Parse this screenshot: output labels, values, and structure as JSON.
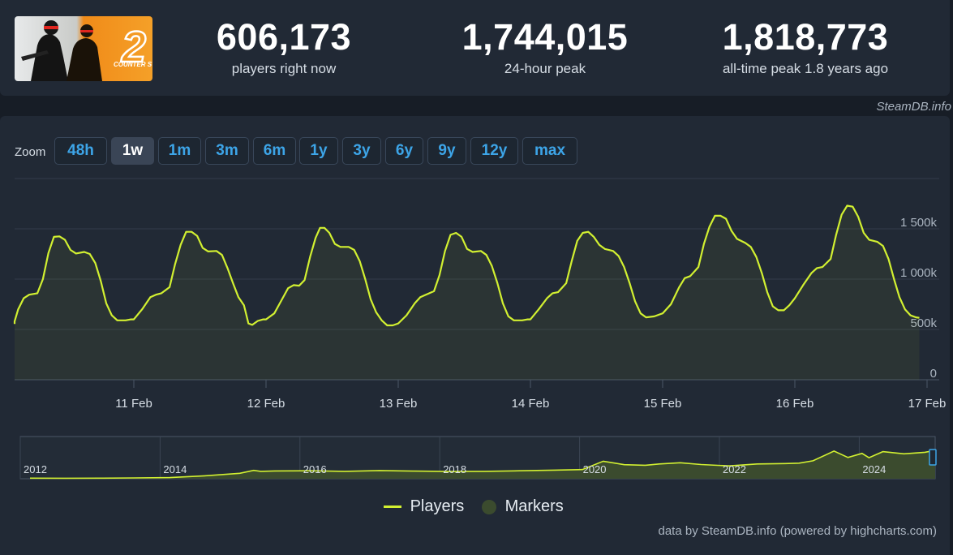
{
  "header": {
    "logo_label": "COUNTER STRIKE",
    "logo_number": "2",
    "stats": [
      {
        "value": "606,173",
        "label": "players right now"
      },
      {
        "value": "1,744,015",
        "label": "24-hour peak"
      },
      {
        "value": "1,818,773",
        "label": "all-time peak 1.8 years ago"
      }
    ],
    "credit": "SteamDB.info"
  },
  "zoom": {
    "label": "Zoom",
    "buttons": [
      "48h",
      "1w",
      "1m",
      "3m",
      "6m",
      "1y",
      "3y",
      "6y",
      "9y",
      "12y",
      "max"
    ],
    "active": "1w"
  },
  "colors": {
    "series": "#d2f031",
    "navigator_fill": "#3b4b2e",
    "background": "#212935"
  },
  "chart_data": {
    "type": "line",
    "series": [
      {
        "name": "Players"
      }
    ],
    "x_ticks": [
      "11 Feb",
      "12 Feb",
      "13 Feb",
      "14 Feb",
      "15 Feb",
      "16 Feb",
      "17 Feb"
    ],
    "y_ticks": [
      "0",
      "500k",
      "1 000k",
      "1 500k"
    ],
    "ylim": [
      0,
      2000000
    ],
    "days": [
      {
        "x": "10 Feb",
        "points": [
          [
            0.0,
            555000
          ],
          [
            1.5,
            580000
          ],
          [
            3.0,
            700000
          ],
          [
            4.0,
            810000
          ],
          [
            5.0,
            845000
          ],
          [
            6.5,
            860000
          ],
          [
            7.5,
            1000000
          ],
          [
            8.5,
            1260000
          ],
          [
            9.5,
            1420000
          ],
          [
            10.5,
            1425000
          ],
          [
            11.5,
            1390000
          ],
          [
            12.5,
            1290000
          ],
          [
            13.5,
            1255000
          ],
          [
            15.0,
            1270000
          ],
          [
            16.0,
            1250000
          ],
          [
            17.0,
            1160000
          ],
          [
            18.0,
            980000
          ],
          [
            19.0,
            760000
          ],
          [
            20.0,
            640000
          ],
          [
            21.0,
            590000
          ],
          [
            22.5,
            590000
          ],
          [
            23.5,
            600000
          ]
        ]
      },
      {
        "x": "11 Feb",
        "points": [
          [
            0.0,
            600000
          ],
          [
            1.5,
            700000
          ],
          [
            3.0,
            820000
          ],
          [
            4.0,
            845000
          ],
          [
            5.0,
            860000
          ],
          [
            6.5,
            920000
          ],
          [
            7.5,
            1150000
          ],
          [
            8.5,
            1340000
          ],
          [
            9.5,
            1470000
          ],
          [
            10.5,
            1470000
          ],
          [
            11.5,
            1430000
          ],
          [
            12.5,
            1310000
          ],
          [
            13.5,
            1275000
          ],
          [
            15.0,
            1280000
          ],
          [
            16.0,
            1240000
          ],
          [
            17.0,
            1110000
          ],
          [
            18.0,
            960000
          ],
          [
            19.0,
            820000
          ],
          [
            20.0,
            740000
          ],
          [
            20.8,
            560000
          ],
          [
            21.5,
            545000
          ],
          [
            22.5,
            585000
          ],
          [
            23.5,
            600000
          ]
        ]
      },
      {
        "x": "12 Feb",
        "points": [
          [
            0.0,
            600000
          ],
          [
            1.5,
            660000
          ],
          [
            3.0,
            810000
          ],
          [
            4.0,
            910000
          ],
          [
            5.0,
            940000
          ],
          [
            6.0,
            935000
          ],
          [
            7.0,
            990000
          ],
          [
            8.0,
            1220000
          ],
          [
            9.0,
            1410000
          ],
          [
            9.8,
            1510000
          ],
          [
            10.6,
            1510000
          ],
          [
            11.5,
            1460000
          ],
          [
            12.5,
            1350000
          ],
          [
            13.5,
            1320000
          ],
          [
            15.0,
            1320000
          ],
          [
            16.0,
            1290000
          ],
          [
            17.0,
            1180000
          ],
          [
            18.0,
            1000000
          ],
          [
            19.0,
            800000
          ],
          [
            20.0,
            670000
          ],
          [
            21.0,
            590000
          ],
          [
            22.0,
            540000
          ],
          [
            23.0,
            540000
          ]
        ]
      },
      {
        "x": "13 Feb",
        "points": [
          [
            0.0,
            560000
          ],
          [
            1.5,
            640000
          ],
          [
            3.0,
            760000
          ],
          [
            4.0,
            820000
          ],
          [
            5.0,
            845000
          ],
          [
            6.5,
            880000
          ],
          [
            7.5,
            1040000
          ],
          [
            8.5,
            1280000
          ],
          [
            9.5,
            1440000
          ],
          [
            10.5,
            1460000
          ],
          [
            11.5,
            1420000
          ],
          [
            12.5,
            1300000
          ],
          [
            13.5,
            1270000
          ],
          [
            15.0,
            1280000
          ],
          [
            16.0,
            1240000
          ],
          [
            17.0,
            1130000
          ],
          [
            18.0,
            960000
          ],
          [
            19.0,
            760000
          ],
          [
            20.0,
            630000
          ],
          [
            21.0,
            590000
          ],
          [
            22.5,
            590000
          ],
          [
            23.5,
            600000
          ]
        ]
      },
      {
        "x": "14 Feb",
        "points": [
          [
            0.0,
            600000
          ],
          [
            1.5,
            700000
          ],
          [
            3.0,
            810000
          ],
          [
            4.0,
            860000
          ],
          [
            5.0,
            870000
          ],
          [
            6.5,
            960000
          ],
          [
            7.5,
            1180000
          ],
          [
            8.5,
            1380000
          ],
          [
            9.5,
            1460000
          ],
          [
            10.5,
            1470000
          ],
          [
            11.5,
            1420000
          ],
          [
            12.5,
            1340000
          ],
          [
            13.5,
            1300000
          ],
          [
            15.0,
            1280000
          ],
          [
            16.0,
            1230000
          ],
          [
            17.0,
            1120000
          ],
          [
            18.0,
            960000
          ],
          [
            19.0,
            780000
          ],
          [
            20.0,
            660000
          ],
          [
            21.0,
            620000
          ],
          [
            22.5,
            630000
          ],
          [
            23.5,
            650000
          ]
        ]
      },
      {
        "x": "15 Feb",
        "points": [
          [
            0.0,
            660000
          ],
          [
            1.5,
            750000
          ],
          [
            3.0,
            920000
          ],
          [
            4.0,
            1010000
          ],
          [
            5.0,
            1030000
          ],
          [
            6.5,
            1120000
          ],
          [
            7.5,
            1350000
          ],
          [
            8.5,
            1520000
          ],
          [
            9.5,
            1630000
          ],
          [
            10.5,
            1630000
          ],
          [
            11.5,
            1600000
          ],
          [
            12.5,
            1480000
          ],
          [
            13.5,
            1400000
          ],
          [
            15.0,
            1360000
          ],
          [
            16.0,
            1320000
          ],
          [
            17.0,
            1220000
          ],
          [
            18.0,
            1060000
          ],
          [
            19.0,
            870000
          ],
          [
            20.0,
            730000
          ],
          [
            21.0,
            690000
          ],
          [
            22.0,
            690000
          ],
          [
            23.0,
            740000
          ]
        ]
      },
      {
        "x": "16 Feb",
        "points": [
          [
            0.0,
            810000
          ],
          [
            1.5,
            940000
          ],
          [
            3.0,
            1060000
          ],
          [
            4.0,
            1110000
          ],
          [
            5.0,
            1120000
          ],
          [
            6.5,
            1200000
          ],
          [
            7.5,
            1440000
          ],
          [
            8.5,
            1640000
          ],
          [
            9.5,
            1730000
          ],
          [
            10.5,
            1720000
          ],
          [
            11.5,
            1620000
          ],
          [
            12.5,
            1460000
          ],
          [
            13.5,
            1390000
          ],
          [
            15.0,
            1370000
          ],
          [
            16.0,
            1330000
          ],
          [
            17.0,
            1200000
          ],
          [
            18.0,
            1000000
          ],
          [
            19.0,
            820000
          ],
          [
            20.0,
            700000
          ],
          [
            21.0,
            640000
          ],
          [
            22.0,
            620000
          ],
          [
            22.6,
            615000
          ]
        ]
      }
    ],
    "navigator": {
      "x_ticks": [
        "2012",
        "2014",
        "2016",
        "2018",
        "2020",
        "2022",
        "2024"
      ],
      "ylim": [
        0,
        2000000
      ],
      "points": [
        [
          2012.0,
          30000
        ],
        [
          2012.5,
          25000
        ],
        [
          2013.0,
          30000
        ],
        [
          2013.5,
          40000
        ],
        [
          2014.0,
          60000
        ],
        [
          2014.5,
          150000
        ],
        [
          2015.0,
          280000
        ],
        [
          2015.2,
          430000
        ],
        [
          2015.3,
          380000
        ],
        [
          2015.5,
          400000
        ],
        [
          2016.0,
          410000
        ],
        [
          2016.5,
          380000
        ],
        [
          2017.0,
          420000
        ],
        [
          2017.5,
          390000
        ],
        [
          2018.0,
          370000
        ],
        [
          2018.5,
          380000
        ],
        [
          2019.0,
          410000
        ],
        [
          2019.5,
          440000
        ],
        [
          2019.9,
          470000
        ],
        [
          2020.2,
          900000
        ],
        [
          2020.5,
          720000
        ],
        [
          2020.8,
          690000
        ],
        [
          2021.0,
          760000
        ],
        [
          2021.3,
          820000
        ],
        [
          2021.6,
          730000
        ],
        [
          2022.0,
          660000
        ],
        [
          2022.4,
          760000
        ],
        [
          2022.8,
          780000
        ],
        [
          2023.0,
          800000
        ],
        [
          2023.2,
          920000
        ],
        [
          2023.5,
          1420000
        ],
        [
          2023.7,
          1090000
        ],
        [
          2023.9,
          1300000
        ],
        [
          2024.0,
          1080000
        ],
        [
          2024.2,
          1390000
        ],
        [
          2024.5,
          1280000
        ],
        [
          2024.8,
          1360000
        ],
        [
          2024.95,
          1460000
        ],
        [
          2025.05,
          1220000
        ]
      ]
    }
  },
  "legend": {
    "players": "Players",
    "markers": "Markers"
  },
  "footer": {
    "credit": "data by SteamDB.info (powered by highcharts.com)"
  }
}
